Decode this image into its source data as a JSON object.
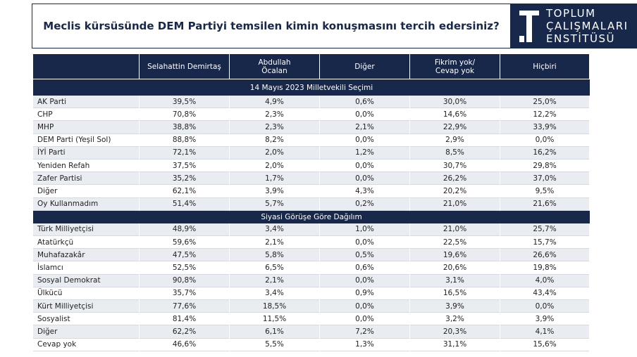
{
  "header": {
    "title": "Meclis kürsüsünde DEM Partiyi temsilen kimin konuşmasını tercih edersiniz?",
    "logo": [
      "TOPLUM",
      "ÇALIŞMALARI",
      "ENSTİTÜSÜ"
    ]
  },
  "table": {
    "columns": [
      [
        "Selahattin Demirtaş"
      ],
      [
        "Abdullah",
        "Öcalan"
      ],
      [
        "Diğer"
      ],
      [
        "Fikrim yok/",
        "Cevap yok"
      ],
      [
        "Hiçbiri"
      ]
    ],
    "sections": [
      {
        "title": "14 Mayıs 2023 Milletvekili Seçimi",
        "rows": [
          [
            "AK Parti",
            "39,5%",
            "4,9%",
            "0,6%",
            "30,0%",
            "25,0%"
          ],
          [
            "CHP",
            "70,8%",
            "2,3%",
            "0,0%",
            "14,6%",
            "12,2%"
          ],
          [
            "MHP",
            "38,8%",
            "2,3%",
            "2,1%",
            "22,9%",
            "33,9%"
          ],
          [
            "DEM Parti (Yeşil Sol)",
            "88,8%",
            "8,2%",
            "0,0%",
            "2,9%",
            "0,0%"
          ],
          [
            "İYİ Parti",
            "72,1%",
            "2,0%",
            "1,2%",
            "8,5%",
            "16,2%"
          ],
          [
            "Yeniden Refah",
            "37,5%",
            "2,0%",
            "0,0%",
            "30,7%",
            "29,8%"
          ],
          [
            "Zafer Partisi",
            "35,2%",
            "1,7%",
            "0,0%",
            "26,2%",
            "37,0%"
          ],
          [
            "Diğer",
            "62,1%",
            "3,9%",
            "4,3%",
            "20,2%",
            "9,5%"
          ],
          [
            "Oy Kullanmadım",
            "51,4%",
            "5,7%",
            "0,2%",
            "21,0%",
            "21,6%"
          ]
        ]
      },
      {
        "title": "Siyasi Görüşe Göre Dağılım",
        "rows": [
          [
            "Türk Milliyetçisi",
            "48,9%",
            "3,4%",
            "1,0%",
            "21,0%",
            "25,7%"
          ],
          [
            "Atatürkçü",
            "59,6%",
            "2,1%",
            "0,0%",
            "22,5%",
            "15,7%"
          ],
          [
            "Muhafazakâr",
            "47,5%",
            "5,8%",
            "0,5%",
            "19,6%",
            "26,6%"
          ],
          [
            "İslamcı",
            "52,5%",
            "6,5%",
            "0,6%",
            "20,6%",
            "19,8%"
          ],
          [
            "Sosyal Demokrat",
            "90,8%",
            "2,1%",
            "0,0%",
            "3,1%",
            "4,0%"
          ],
          [
            "Ülkücü",
            "35,7%",
            "3,4%",
            "0,9%",
            "16,5%",
            "43,4%"
          ],
          [
            "Kürt Milliyetçisi",
            "77,6%",
            "18,5%",
            "0,0%",
            "3,9%",
            "0,0%"
          ],
          [
            "Sosyalist",
            "81,4%",
            "11,5%",
            "0,0%",
            "3,2%",
            "3,9%"
          ],
          [
            "Diğer",
            "62,2%",
            "6,1%",
            "7,2%",
            "20,3%",
            "4,1%"
          ],
          [
            "Cevap yok",
            "46,6%",
            "5,5%",
            "1,3%",
            "31,1%",
            "15,6%"
          ]
        ]
      }
    ]
  }
}
